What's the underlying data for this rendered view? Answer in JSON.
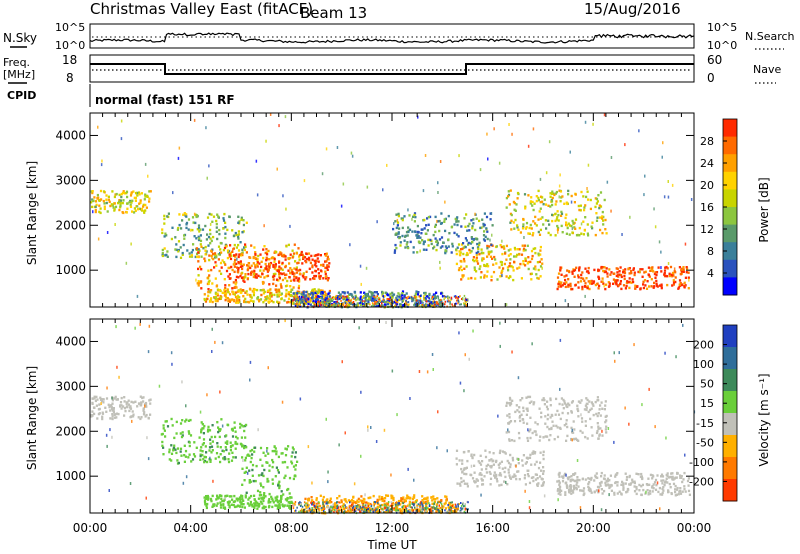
{
  "header": {
    "title": "Christmas Valley East (fitACF)",
    "beam": "Beam 13",
    "date": "15/Aug/2016"
  },
  "status": {
    "nsky_label": "N.Sky",
    "nsky_ticks": [
      "10^5",
      "10^0"
    ],
    "nsearch_label": "N.Search",
    "nsearch_ticks": [
      "10^5",
      "10^0"
    ],
    "freq_label_1": "Freq.",
    "freq_label_2": "[MHz]",
    "freq_ticks": [
      "18",
      "8"
    ],
    "nave_label": "Nave",
    "nave_ticks": [
      "60",
      "0"
    ],
    "cpid_label": "CPID",
    "cpid_text": "normal (fast) 151 RF"
  },
  "chart_data": [
    {
      "type": "heatmap",
      "panel": "power",
      "ylabel": "Slant Range [km]",
      "ylim": [
        180,
        4500
      ],
      "yticks": [
        "1000",
        "2000",
        "3000",
        "4000"
      ],
      "colorbar_label": "Power [dB]",
      "colorbar_ticks": [
        "28",
        "24",
        "20",
        "16",
        "12",
        "8",
        "4"
      ],
      "colorscale": [
        "#0000ff",
        "#2a52be",
        "#3a7f9a",
        "#5a9a6a",
        "#8cc63f",
        "#c8d400",
        "#ffd200",
        "#ffa000",
        "#ff6a00",
        "#ff2a00"
      ],
      "regions": [
        {
          "t0": 0.0,
          "t1": 2.4,
          "r0": 2300,
          "r1": 2800,
          "value": 18
        },
        {
          "t0": 2.8,
          "t1": 6.2,
          "r0": 1300,
          "r1": 2300,
          "value": 14
        },
        {
          "t0": 4.2,
          "t1": 8.5,
          "r0": 600,
          "r1": 1600,
          "value": 22
        },
        {
          "t0": 5.5,
          "t1": 9.5,
          "r0": 800,
          "r1": 1400,
          "value": 26
        },
        {
          "t0": 4.5,
          "t1": 9.5,
          "r0": 300,
          "r1": 600,
          "value": 20
        },
        {
          "t0": 8.0,
          "t1": 14.0,
          "r0": 200,
          "r1": 550,
          "value": 10
        },
        {
          "t0": 14.5,
          "t1": 18.0,
          "r0": 800,
          "r1": 1600,
          "value": 20
        },
        {
          "t0": 16.5,
          "t1": 20.5,
          "r0": 1800,
          "r1": 2800,
          "value": 18
        },
        {
          "t0": 18.5,
          "t1": 23.8,
          "r0": 600,
          "r1": 1100,
          "value": 26
        },
        {
          "t0": 12.0,
          "t1": 16.0,
          "r0": 1400,
          "r1": 2300,
          "value": 12
        }
      ]
    },
    {
      "type": "heatmap",
      "panel": "velocity",
      "ylabel": "Slant Range [km]",
      "ylim": [
        180,
        4500
      ],
      "yticks": [
        "1000",
        "2000",
        "3000",
        "4000"
      ],
      "xlabel": "Time UT",
      "xticks": [
        "00:00",
        "04:00",
        "08:00",
        "12:00",
        "16:00",
        "20:00",
        "00:00"
      ],
      "colorbar_label": "Velocity [m s⁻¹]",
      "colorbar_ticks": [
        "200",
        "100",
        "50",
        "15",
        "-15",
        "-50",
        "-100",
        "-200"
      ],
      "colorscale": [
        "#2040c0",
        "#2f6e9a",
        "#3d8a5a",
        "#6acf3a",
        "#c0c0b8",
        "#ffb000",
        "#ff7a00",
        "#ff3a00"
      ],
      "regions": [
        {
          "t0": 0.0,
          "t1": 2.4,
          "r0": 2300,
          "r1": 2800,
          "value": 0
        },
        {
          "t0": 2.8,
          "t1": 6.2,
          "r0": 1300,
          "r1": 2300,
          "value": 40
        },
        {
          "t0": 6.0,
          "t1": 8.2,
          "r0": 600,
          "r1": 1700,
          "value": 40
        },
        {
          "t0": 4.5,
          "t1": 8.0,
          "r0": 300,
          "r1": 600,
          "value": 30
        },
        {
          "t0": 8.5,
          "t1": 14.5,
          "r0": 200,
          "r1": 600,
          "value": -40
        },
        {
          "t0": 14.5,
          "t1": 18.0,
          "r0": 800,
          "r1": 1600,
          "value": 0
        },
        {
          "t0": 16.5,
          "t1": 20.5,
          "r0": 1800,
          "r1": 2800,
          "value": 0
        },
        {
          "t0": 18.5,
          "t1": 23.8,
          "r0": 600,
          "r1": 1100,
          "value": 0
        }
      ]
    }
  ]
}
